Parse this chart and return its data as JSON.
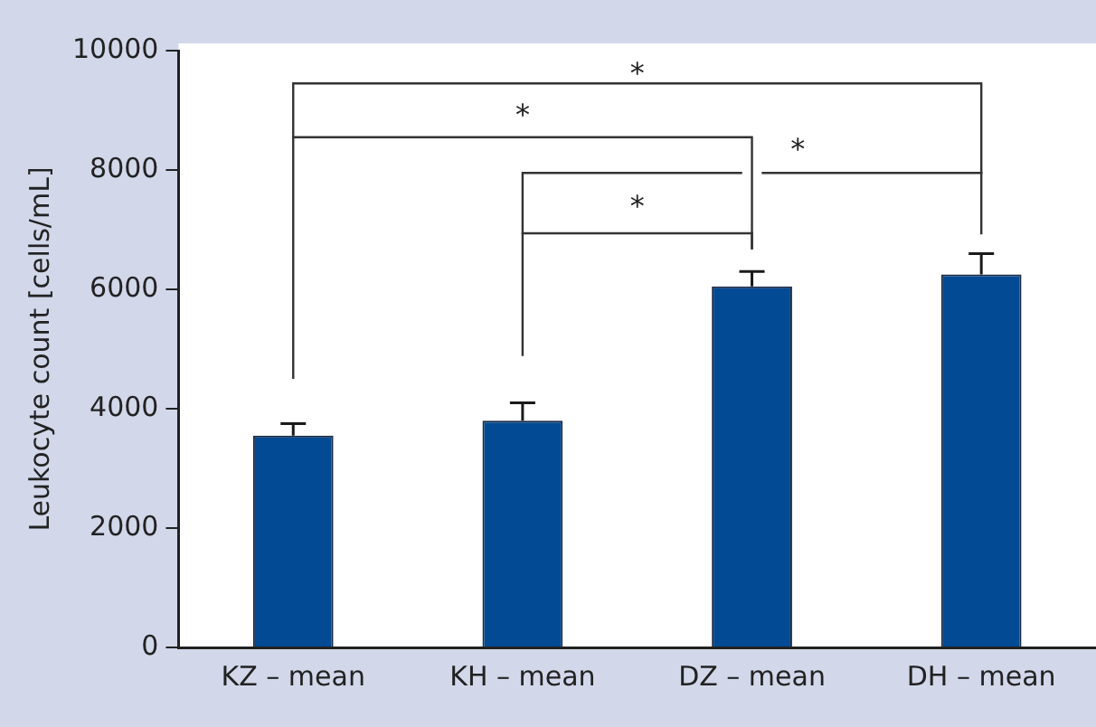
{
  "chart_data": {
    "type": "bar",
    "ylabel": "Leukocyte count [cells/mL]",
    "categories": [
      "KZ – mean",
      "KH – mean",
      "DZ – mean",
      "DH – mean"
    ],
    "values": [
      3550,
      3800,
      6050,
      6250
    ],
    "errors": [
      200,
      300,
      250,
      350
    ],
    "color": "#024a93",
    "ylim": [
      0,
      10000
    ],
    "yticks": [
      0,
      2000,
      4000,
      6000,
      8000,
      10000
    ],
    "grid": false,
    "legend": false,
    "annotations": [
      "*",
      "*",
      "*",
      "*"
    ]
  }
}
